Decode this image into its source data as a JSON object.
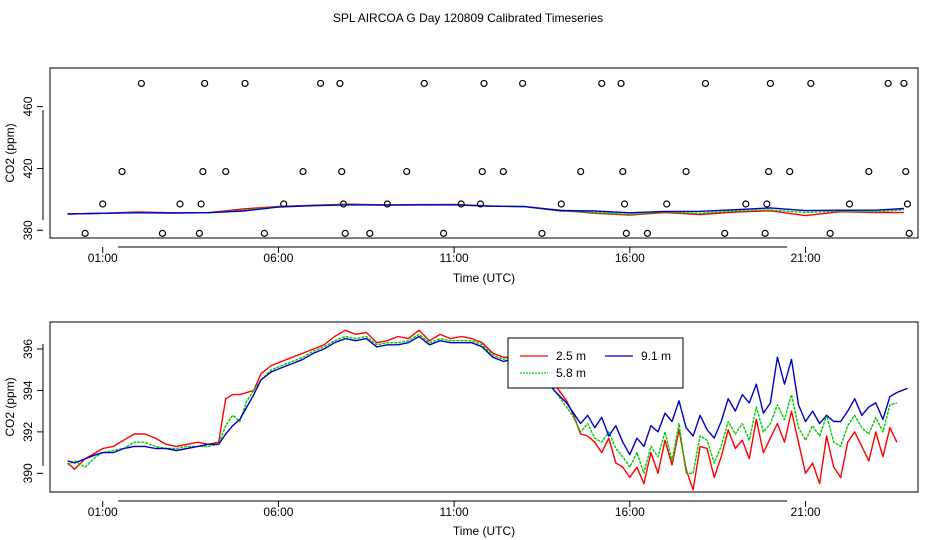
{
  "page_title": "SPL AIRCOA G  Day 120809  Calibrated Timeseries",
  "chart_data": [
    {
      "type": "line",
      "title": "",
      "xlabel": "Time (UTC)",
      "ylabel": "CO2 (ppm)",
      "xlim": [
        -0.5,
        24.2
      ],
      "ylim": [
        375,
        485
      ],
      "x_ticks": [
        1,
        6,
        11,
        16,
        21
      ],
      "x_tick_labels": [
        "01:00",
        "06:00",
        "11:00",
        "16:00",
        "21:00"
      ],
      "y_ticks": [
        380,
        420,
        460
      ],
      "y_tick_labels": [
        "380",
        "420",
        "460"
      ],
      "scatter_points": [
        {
          "x": 0.5,
          "y": 378
        },
        {
          "x": 1.0,
          "y": 397
        },
        {
          "x": 1.55,
          "y": 418
        },
        {
          "x": 2.1,
          "y": 475
        },
        {
          "x": 2.7,
          "y": 378
        },
        {
          "x": 3.2,
          "y": 397
        },
        {
          "x": 3.75,
          "y": 378
        },
        {
          "x": 3.8,
          "y": 397
        },
        {
          "x": 3.85,
          "y": 418
        },
        {
          "x": 3.9,
          "y": 475
        },
        {
          "x": 4.5,
          "y": 418
        },
        {
          "x": 5.05,
          "y": 475
        },
        {
          "x": 5.6,
          "y": 378
        },
        {
          "x": 6.15,
          "y": 397
        },
        {
          "x": 6.7,
          "y": 418
        },
        {
          "x": 7.2,
          "y": 475
        },
        {
          "x": 7.75,
          "y": 475
        },
        {
          "x": 7.8,
          "y": 418
        },
        {
          "x": 7.85,
          "y": 397
        },
        {
          "x": 7.9,
          "y": 378
        },
        {
          "x": 8.6,
          "y": 378
        },
        {
          "x": 9.1,
          "y": 397
        },
        {
          "x": 9.65,
          "y": 418
        },
        {
          "x": 10.15,
          "y": 475
        },
        {
          "x": 10.7,
          "y": 378
        },
        {
          "x": 11.2,
          "y": 397
        },
        {
          "x": 11.75,
          "y": 397
        },
        {
          "x": 11.8,
          "y": 418
        },
        {
          "x": 11.85,
          "y": 475
        },
        {
          "x": 12.4,
          "y": 418
        },
        {
          "x": 12.95,
          "y": 475
        },
        {
          "x": 13.5,
          "y": 378
        },
        {
          "x": 14.05,
          "y": 397
        },
        {
          "x": 14.6,
          "y": 418
        },
        {
          "x": 15.2,
          "y": 475
        },
        {
          "x": 15.75,
          "y": 475
        },
        {
          "x": 15.8,
          "y": 418
        },
        {
          "x": 15.85,
          "y": 397
        },
        {
          "x": 15.9,
          "y": 378
        },
        {
          "x": 16.5,
          "y": 378
        },
        {
          "x": 17.05,
          "y": 397
        },
        {
          "x": 17.6,
          "y": 418
        },
        {
          "x": 18.15,
          "y": 475
        },
        {
          "x": 18.7,
          "y": 378
        },
        {
          "x": 19.3,
          "y": 397
        },
        {
          "x": 19.85,
          "y": 378
        },
        {
          "x": 19.9,
          "y": 397
        },
        {
          "x": 19.95,
          "y": 418
        },
        {
          "x": 20.0,
          "y": 475
        },
        {
          "x": 20.55,
          "y": 418
        },
        {
          "x": 21.15,
          "y": 475
        },
        {
          "x": 21.7,
          "y": 378
        },
        {
          "x": 22.25,
          "y": 397
        },
        {
          "x": 22.8,
          "y": 418
        },
        {
          "x": 23.35,
          "y": 475
        },
        {
          "x": 23.8,
          "y": 475
        },
        {
          "x": 23.85,
          "y": 418
        },
        {
          "x": 23.9,
          "y": 397
        },
        {
          "x": 23.95,
          "y": 378
        }
      ],
      "series": [
        {
          "name": "2.5 m",
          "color": "#ff0000",
          "x": [
            0,
            1,
            2,
            3,
            4,
            5,
            6,
            7,
            8,
            9,
            10,
            11,
            12,
            13,
            14,
            15,
            16,
            17,
            18,
            19,
            20,
            21,
            22,
            23,
            23.8
          ],
          "values": [
            390.5,
            391.0,
            391.9,
            391.3,
            391.4,
            393.8,
            395.4,
            396.2,
            396.9,
            396.4,
            396.6,
            396.7,
            395.8,
            395.3,
            393.0,
            391.0,
            389.8,
            391.5,
            390.2,
            391.8,
            392.6,
            389.5,
            392.0,
            391.5,
            391.5
          ]
        },
        {
          "name": "5.8 m",
          "color": "#00cc00",
          "x": [
            0,
            1,
            2,
            3,
            4,
            5,
            6,
            7,
            8,
            9,
            10,
            11,
            12,
            13,
            14,
            15,
            16,
            17,
            18,
            19,
            20,
            21,
            22,
            23,
            23.8
          ],
          "values": [
            390.5,
            391.0,
            391.5,
            391.2,
            391.3,
            393.0,
            395.2,
            396.0,
            396.6,
            396.3,
            396.4,
            396.5,
            395.7,
            395.3,
            392.5,
            391.5,
            390.3,
            391.8,
            391.0,
            392.6,
            393.2,
            391.5,
            392.5,
            392.0,
            393.4
          ]
        },
        {
          "name": "9.1 m",
          "color": "#0000cc",
          "x": [
            0,
            1,
            2,
            3,
            4,
            5,
            6,
            7,
            8,
            9,
            10,
            11,
            12,
            13,
            14,
            15,
            16,
            17,
            18,
            19,
            20,
            21,
            22,
            23,
            23.8
          ],
          "values": [
            390.5,
            391.0,
            391.3,
            391.2,
            391.4,
            392.5,
            395.0,
            395.9,
            396.5,
            396.3,
            396.4,
            396.5,
            395.6,
            395.3,
            392.8,
            392.5,
            391.3,
            392.2,
            392.3,
            393.3,
            394.5,
            392.7,
            393.0,
            393.0,
            394.1
          ]
        }
      ]
    },
    {
      "type": "line",
      "title": "",
      "xlabel": "Time (UTC)",
      "ylabel": "CO2 (ppm)",
      "xlim": [
        -0.5,
        24.2
      ],
      "ylim": [
        389.1,
        397.3
      ],
      "x_ticks": [
        1,
        6,
        11,
        16,
        21
      ],
      "x_tick_labels": [
        "01:00",
        "06:00",
        "11:00",
        "16:00",
        "21:00"
      ],
      "y_ticks": [
        390,
        392,
        394,
        396
      ],
      "y_tick_labels": [
        "390",
        "392",
        "394",
        "396"
      ],
      "legend_position": "top-right",
      "series": [
        {
          "name": "2.5 m",
          "color": "#ff0000",
          "x": [
            0,
            0.2,
            0.5,
            0.8,
            1.0,
            1.3,
            1.6,
            1.9,
            2.2,
            2.5,
            2.8,
            3.1,
            3.4,
            3.7,
            4.0,
            4.3,
            4.5,
            4.7,
            4.9,
            5.1,
            5.3,
            5.5,
            5.8,
            6.1,
            6.4,
            6.7,
            7.0,
            7.3,
            7.6,
            7.9,
            8.2,
            8.5,
            8.8,
            9.1,
            9.4,
            9.7,
            10.0,
            10.3,
            10.6,
            10.9,
            11.2,
            11.5,
            11.8,
            12.1,
            12.4,
            12.7,
            13.0,
            13.3,
            13.6,
            13.9,
            14.2,
            14.4,
            14.6,
            14.8,
            15.0,
            15.2,
            15.4,
            15.6,
            15.8,
            16.0,
            16.2,
            16.4,
            16.6,
            16.8,
            17.0,
            17.2,
            17.4,
            17.6,
            17.8,
            18.0,
            18.2,
            18.4,
            18.6,
            18.8,
            19.0,
            19.2,
            19.4,
            19.6,
            19.8,
            20.0,
            20.2,
            20.4,
            20.6,
            20.8,
            21.0,
            21.2,
            21.4,
            21.6,
            21.8,
            22.0,
            22.2,
            22.4,
            22.6,
            22.8,
            23.0,
            23.2,
            23.4,
            23.6
          ],
          "values": [
            390.5,
            390.2,
            390.7,
            391.0,
            391.2,
            391.3,
            391.6,
            391.9,
            391.9,
            391.7,
            391.4,
            391.3,
            391.4,
            391.5,
            391.4,
            391.5,
            393.6,
            393.8,
            393.8,
            393.9,
            394.0,
            394.8,
            395.2,
            395.4,
            395.6,
            395.8,
            396.0,
            396.2,
            396.6,
            396.9,
            396.7,
            396.8,
            396.3,
            396.4,
            396.6,
            396.5,
            396.9,
            396.4,
            396.7,
            396.5,
            396.6,
            396.5,
            396.3,
            395.8,
            395.6,
            395.6,
            395.4,
            395.0,
            394.8,
            394.2,
            393.5,
            392.8,
            391.9,
            391.8,
            391.5,
            391.0,
            391.7,
            390.5,
            390.3,
            389.8,
            390.3,
            389.5,
            391.0,
            390.0,
            391.6,
            390.4,
            392.1,
            390.2,
            389.2,
            391.3,
            391.2,
            389.8,
            390.8,
            392.1,
            391.2,
            391.6,
            390.7,
            392.6,
            391.0,
            391.7,
            392.4,
            391.5,
            393.0,
            391.5,
            390.0,
            390.5,
            389.5,
            391.8,
            390.3,
            389.8,
            391.5,
            392.0,
            391.3,
            390.6,
            392.0,
            390.8,
            392.2,
            391.5
          ]
        },
        {
          "name": "5.8 m",
          "color": "#00cc00",
          "x": [
            0,
            0.2,
            0.5,
            0.8,
            1.0,
            1.3,
            1.6,
            1.9,
            2.2,
            2.5,
            2.8,
            3.1,
            3.4,
            3.7,
            4.0,
            4.3,
            4.5,
            4.7,
            4.9,
            5.1,
            5.3,
            5.5,
            5.8,
            6.1,
            6.4,
            6.7,
            7.0,
            7.3,
            7.6,
            7.9,
            8.2,
            8.5,
            8.8,
            9.1,
            9.4,
            9.7,
            10.0,
            10.3,
            10.6,
            10.9,
            11.2,
            11.5,
            11.8,
            12.1,
            12.4,
            12.7,
            13.0,
            13.3,
            13.6,
            13.9,
            14.2,
            14.4,
            14.6,
            14.8,
            15.0,
            15.2,
            15.4,
            15.6,
            15.8,
            16.0,
            16.2,
            16.4,
            16.6,
            16.8,
            17.0,
            17.2,
            17.4,
            17.6,
            17.8,
            18.0,
            18.2,
            18.4,
            18.6,
            18.8,
            19.0,
            19.2,
            19.4,
            19.6,
            19.8,
            20.0,
            20.2,
            20.4,
            20.6,
            20.8,
            21.0,
            21.2,
            21.4,
            21.6,
            21.8,
            22.0,
            22.2,
            22.4,
            22.6,
            22.8,
            23.0,
            23.2,
            23.4,
            23.6
          ],
          "values": [
            390.4,
            390.6,
            390.3,
            390.8,
            391.0,
            391.1,
            391.2,
            391.5,
            391.5,
            391.3,
            391.2,
            391.2,
            391.3,
            391.3,
            391.3,
            391.4,
            392.3,
            392.8,
            392.5,
            393.5,
            394.0,
            394.5,
            395.0,
            395.2,
            395.4,
            395.6,
            395.9,
            396.1,
            396.4,
            396.6,
            396.5,
            396.6,
            396.2,
            396.3,
            396.3,
            396.4,
            396.7,
            396.3,
            396.5,
            396.4,
            396.4,
            396.4,
            396.2,
            395.7,
            395.5,
            395.6,
            395.3,
            395.0,
            394.6,
            393.9,
            393.2,
            392.7,
            392.0,
            392.4,
            391.7,
            391.5,
            392.0,
            391.2,
            390.8,
            390.3,
            391.0,
            390.0,
            391.3,
            390.8,
            392.0,
            390.6,
            392.4,
            390.0,
            390.0,
            391.8,
            391.6,
            390.5,
            391.3,
            392.5,
            391.9,
            392.4,
            391.6,
            393.2,
            392.0,
            392.4,
            393.3,
            392.6,
            393.8,
            392.2,
            391.6,
            392.3,
            391.8,
            392.8,
            391.5,
            391.3,
            392.3,
            392.8,
            392.2,
            391.9,
            392.7,
            392.0,
            393.3,
            393.4
          ]
        },
        {
          "name": "9.1 m",
          "color": "#0000cc",
          "x": [
            0,
            0.2,
            0.5,
            0.8,
            1.0,
            1.3,
            1.6,
            1.9,
            2.2,
            2.5,
            2.8,
            3.1,
            3.4,
            3.7,
            4.0,
            4.3,
            4.5,
            4.7,
            4.9,
            5.1,
            5.3,
            5.5,
            5.8,
            6.1,
            6.4,
            6.7,
            7.0,
            7.3,
            7.6,
            7.9,
            8.2,
            8.5,
            8.8,
            9.1,
            9.4,
            9.7,
            10.0,
            10.3,
            10.6,
            10.9,
            11.2,
            11.5,
            11.8,
            12.1,
            12.4,
            12.7,
            13.0,
            13.3,
            13.6,
            13.9,
            14.2,
            14.4,
            14.6,
            14.8,
            15.0,
            15.2,
            15.4,
            15.6,
            15.8,
            16.0,
            16.2,
            16.4,
            16.6,
            16.8,
            17.0,
            17.2,
            17.4,
            17.6,
            17.8,
            18.0,
            18.2,
            18.4,
            18.6,
            18.8,
            19.0,
            19.2,
            19.4,
            19.6,
            19.8,
            20.0,
            20.2,
            20.4,
            20.6,
            20.8,
            21.0,
            21.2,
            21.4,
            21.6,
            21.8,
            22.0,
            22.2,
            22.4,
            22.6,
            22.8,
            23.0,
            23.2,
            23.4,
            23.6,
            23.9
          ],
          "values": [
            390.6,
            390.5,
            390.7,
            390.9,
            391.0,
            391.0,
            391.2,
            391.3,
            391.3,
            391.2,
            391.2,
            391.1,
            391.2,
            391.3,
            391.4,
            391.4,
            391.9,
            392.3,
            392.6,
            393.2,
            393.8,
            394.5,
            394.9,
            395.1,
            395.3,
            395.5,
            395.8,
            396.0,
            396.3,
            396.5,
            396.4,
            396.5,
            396.1,
            396.2,
            396.2,
            396.3,
            396.6,
            396.2,
            396.4,
            396.3,
            396.3,
            396.3,
            396.1,
            395.6,
            395.4,
            395.5,
            395.3,
            394.9,
            394.5,
            393.9,
            393.4,
            392.9,
            392.4,
            392.8,
            392.2,
            392.7,
            391.8,
            392.3,
            391.5,
            390.9,
            391.7,
            391.3,
            392.3,
            392.0,
            392.9,
            392.5,
            393.5,
            392.2,
            391.8,
            392.8,
            392.1,
            391.7,
            392.5,
            393.6,
            393.0,
            393.8,
            393.4,
            394.3,
            392.9,
            393.4,
            395.6,
            394.3,
            395.5,
            393.3,
            392.5,
            393.0,
            392.4,
            392.8,
            392.5,
            392.5,
            393.0,
            393.6,
            392.8,
            393.2,
            393.4,
            392.6,
            393.7,
            393.9,
            394.1
          ]
        }
      ]
    }
  ]
}
